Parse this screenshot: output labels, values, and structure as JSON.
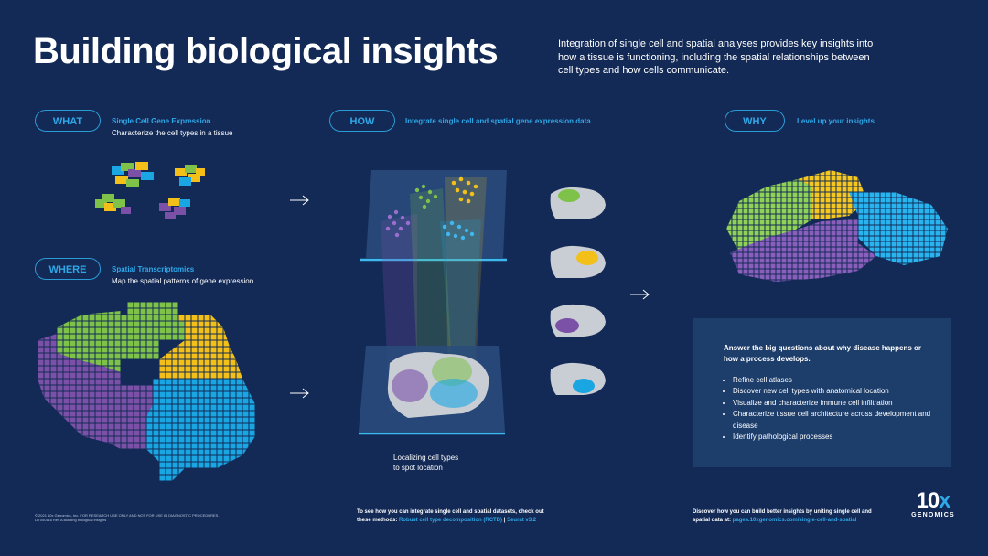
{
  "header": {
    "title": "Building biological insights",
    "intro": "Integration of single cell and spatial analyses provides key insights into how a tissue is functioning, including the spatial relationships between cell types and how cells communicate."
  },
  "what": {
    "pill": "WHAT",
    "title": "Single Cell Gene Expression",
    "subtitle": "Characterize the cell types in a tissue"
  },
  "where": {
    "pill": "WHERE",
    "title": "Spatial Transcriptomics",
    "subtitle": "Map the spatial patterns of gene expression"
  },
  "how": {
    "pill": "HOW",
    "title": "Integrate single cell and spatial gene expression data",
    "caption_line1": "Localizing cell types",
    "caption_line2": "to spot location"
  },
  "why": {
    "pill": "WHY",
    "title": "Level up your insights"
  },
  "panel": {
    "heading": "Answer the big questions about why disease happens or how a process develops.",
    "bullets": [
      "Refine cell atlases",
      "Discover new cell types with anatomical location",
      "Visualize and characterize immune cell infiltration",
      "Characterize tissue cell architecture across development and disease",
      "Identify pathological processes"
    ]
  },
  "footer": {
    "legal_line1": "© 2021 10x Genomics, Inc. FOR RESEARCH USE ONLY AND NOT FOR USE IN DIAGNOSTIC PROCEDURES.",
    "legal_line2": "LIT000116 Rev A Building biological insights",
    "methods_line1": "To see how you can integrate single cell and spatial datasets, check out",
    "methods_prefix": "these methods:",
    "methods_link1": "Robust cell type decomposition (RCTD)",
    "methods_sep": "|",
    "methods_link2": "Seurat v3.2",
    "discover_line1": "Discover how you can build better insights by uniting single cell and",
    "discover_prefix": "spatial data at:",
    "discover_link": "pages.10xgenomics.com/single-cell-and-spatial"
  },
  "logo": {
    "number": "10",
    "x": "x",
    "word": "GENOMICS"
  },
  "colors": {
    "background": "#132a56",
    "accent": "#2fa8e8",
    "green": "#7ec24a",
    "yellow": "#f3c019",
    "purple": "#7b51a8",
    "blue": "#1aa6e3"
  }
}
